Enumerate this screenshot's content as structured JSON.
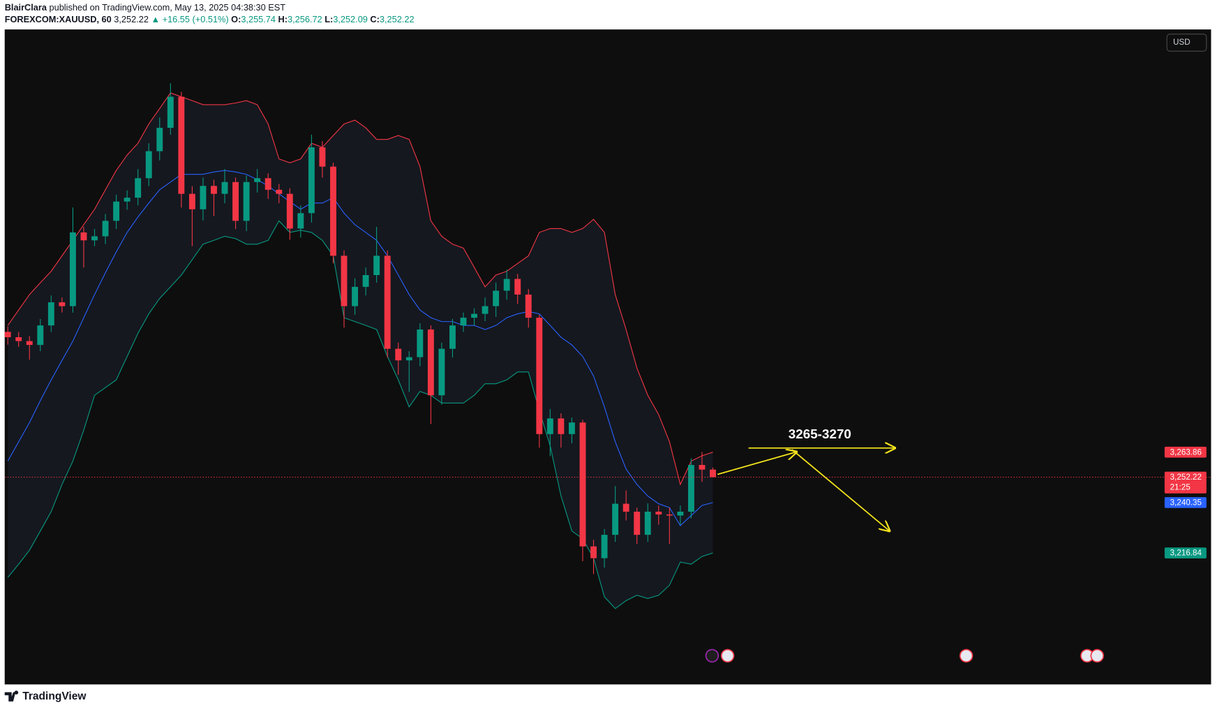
{
  "header": {
    "author": "BlairClara",
    "published": "published on TradingView.com, May 13, 2025 04:38:30 EST",
    "symbol": "FOREXCOM:XAUUSD, 60",
    "price": "3,252.22",
    "change": "▲ +16.55 (+0.51%)",
    "ohlc": [
      {
        "key": "O:",
        "value": "3,255.74"
      },
      {
        "key": "H:",
        "value": "3,256.72"
      },
      {
        "key": "L:",
        "value": "3,252.09"
      },
      {
        "key": "C:",
        "value": "3,252.22"
      }
    ]
  },
  "currency": "USD",
  "brand": "TradingView",
  "chart_data": {
    "type": "candlestick",
    "annotation": "3265-3270",
    "ylim": [
      3155.5,
      3461.1
    ],
    "up_color": "#089981",
    "down_color": "#f23645",
    "band_fill": "#15181f",
    "open": [
      3320.0,
      3317.5,
      3315.7,
      3313.9,
      3323.0,
      3333.8,
      3332.0,
      3366.4,
      3362.7,
      3364.6,
      3371.8,
      3380.8,
      3382.6,
      3391.7,
      3404.3,
      3415.2,
      3429.7,
      3384.4,
      3377.2,
      3388.1,
      3384.4,
      3389.9,
      3371.8,
      3389.9,
      3391.7,
      3386.3,
      3384.4,
      3368.2,
      3375.4,
      3406.1,
      3397.1,
      3355.5,
      3332.0,
      3341.0,
      3346.5,
      3355.5,
      3312.1,
      3306.7,
      3308.2,
      3321.1,
      3290.4,
      3312.1,
      3323.0,
      3326.6,
      3328.4,
      3332.0,
      3339.2,
      3344.7,
      3337.4,
      3326.6,
      3272.3,
      3279.6,
      3272.3,
      3277.7,
      3219.9,
      3214.4,
      3225.3,
      3239.8,
      3236.1,
      3225.3,
      3236.1,
      3234.8,
      3234.3,
      3236.1,
      3257.9,
      3255.74
    ],
    "high": [
      3322.5,
      3320.0,
      3318.0,
      3326.0,
      3337.0,
      3336.0,
      3378.0,
      3369.0,
      3368.0,
      3375.0,
      3384.0,
      3386.0,
      3396.0,
      3408.0,
      3420.0,
      3436.0,
      3432.0,
      3388.0,
      3392.0,
      3391.0,
      3396.0,
      3392.0,
      3393.0,
      3396.0,
      3394.0,
      3389.0,
      3387.0,
      3379.0,
      3412.0,
      3409.0,
      3399.0,
      3358.0,
      3345.0,
      3350.0,
      3369.0,
      3358.0,
      3315.0,
      3311.0,
      3324.0,
      3323.0,
      3315.0,
      3326.0,
      3329.0,
      3331.0,
      3336.0,
      3343.0,
      3349.0,
      3347.0,
      3340.0,
      3328.0,
      3284.0,
      3282.0,
      3280.0,
      3279.0,
      3223.0,
      3228.0,
      3248.0,
      3246.0,
      3238.0,
      3240.0,
      3239.0,
      3238.0,
      3239.0,
      3261.0,
      3264.0,
      3256.72
    ],
    "low": [
      3314.0,
      3313.0,
      3307.0,
      3311.0,
      3320.0,
      3329.0,
      3329.0,
      3350.0,
      3360.0,
      3361.0,
      3368.0,
      3377.0,
      3379.0,
      3388.0,
      3400.0,
      3412.0,
      3378.0,
      3360.0,
      3372.0,
      3374.0,
      3380.0,
      3368.0,
      3367.0,
      3385.0,
      3382.0,
      3380.0,
      3363.0,
      3364.0,
      3371.0,
      3392.0,
      3352.0,
      3322.0,
      3328.0,
      3337.0,
      3343.0,
      3308.0,
      3300.0,
      3292.0,
      3304.0,
      3277.0,
      3286.0,
      3308.0,
      3320.0,
      3323.0,
      3325.0,
      3327.0,
      3335.0,
      3333.0,
      3322.0,
      3266.0,
      3262.0,
      3266.0,
      3268.0,
      3213.0,
      3207.0,
      3210.0,
      3222.0,
      3232.0,
      3221.0,
      3222.0,
      3230.0,
      3221.0,
      3230.0,
      3233.0,
      3250.0,
      3252.09
    ],
    "close": [
      3317.5,
      3315.7,
      3313.9,
      3323.0,
      3333.8,
      3332.0,
      3366.4,
      3362.7,
      3364.6,
      3371.8,
      3380.8,
      3382.6,
      3391.7,
      3404.3,
      3415.2,
      3429.7,
      3384.4,
      3377.2,
      3388.1,
      3384.4,
      3389.9,
      3371.8,
      3389.9,
      3391.7,
      3386.3,
      3384.4,
      3368.2,
      3375.4,
      3406.1,
      3397.1,
      3355.5,
      3332.0,
      3341.0,
      3346.5,
      3355.5,
      3312.1,
      3306.7,
      3308.2,
      3321.1,
      3290.4,
      3312.1,
      3323.0,
      3326.6,
      3328.4,
      3332.0,
      3339.2,
      3344.7,
      3337.4,
      3326.6,
      3272.3,
      3279.6,
      3272.3,
      3277.7,
      3219.9,
      3214.4,
      3225.3,
      3239.8,
      3236.1,
      3225.3,
      3236.1,
      3234.8,
      3234.3,
      3236.1,
      3257.9,
      3255.74,
      3252.22
    ],
    "series": [
      {
        "color": "#f23645",
        "values": [
          3323.0,
          3330.2,
          3337.4,
          3342.9,
          3348.3,
          3355.5,
          3362.7,
          3370.0,
          3377.2,
          3386.3,
          3395.3,
          3402.5,
          3408.0,
          3417.0,
          3424.2,
          3431.5,
          3429.7,
          3427.9,
          3426.0,
          3426.0,
          3426.0,
          3426.8,
          3427.9,
          3426.0,
          3417.0,
          3400.7,
          3398.9,
          3400.7,
          3408.0,
          3406.1,
          3411.6,
          3417.0,
          3418.8,
          3415.2,
          3409.8,
          3409.8,
          3411.6,
          3409.8,
          3397.1,
          3371.8,
          3364.6,
          3360.9,
          3359.1,
          3350.1,
          3341.0,
          3346.5,
          3348.3,
          3351.9,
          3355.5,
          3366.4,
          3368.2,
          3368.2,
          3366.4,
          3368.2,
          3372.5,
          3366.4,
          3337.4,
          3321.1,
          3303.1,
          3290.4,
          3281.4,
          3268.7,
          3248.8,
          3259.7,
          3262.2,
          3263.86
        ]
      },
      {
        "color": "#2962ff",
        "values": [
          3259.7,
          3268.7,
          3277.7,
          3287.9,
          3297.6,
          3306.7,
          3315.7,
          3326.6,
          3337.4,
          3347.6,
          3357.3,
          3366.4,
          3373.6,
          3380.1,
          3386.3,
          3389.9,
          3393.5,
          3393.5,
          3393.5,
          3394.6,
          3395.3,
          3394.6,
          3393.5,
          3391.0,
          3388.1,
          3384.4,
          3380.8,
          3377.2,
          3380.1,
          3380.1,
          3382.6,
          3375.4,
          3370.0,
          3366.4,
          3362.7,
          3355.5,
          3346.5,
          3337.4,
          3330.2,
          3326.6,
          3324.8,
          3324.8,
          3323.0,
          3323.0,
          3321.1,
          3323.0,
          3326.6,
          3328.4,
          3329.5,
          3328.4,
          3323.0,
          3317.5,
          3313.9,
          3308.5,
          3299.4,
          3285.0,
          3268.7,
          3256.0,
          3248.8,
          3243.4,
          3239.8,
          3238.0,
          3229.6,
          3234.3,
          3239.0,
          3240.35
        ]
      },
      {
        "color": "#089981",
        "values": [
          3205.4,
          3211.6,
          3218.1,
          3227.1,
          3236.1,
          3248.8,
          3259.7,
          3274.1,
          3290.4,
          3294.0,
          3297.6,
          3308.5,
          3319.3,
          3328.4,
          3335.6,
          3341.0,
          3346.5,
          3353.7,
          3360.9,
          3362.7,
          3364.6,
          3363.5,
          3360.9,
          3360.9,
          3362.7,
          3371.8,
          3366.4,
          3367.4,
          3366.4,
          3362.7,
          3355.5,
          3326.6,
          3324.8,
          3323.0,
          3321.1,
          3308.5,
          3297.6,
          3285.0,
          3292.2,
          3290.4,
          3286.8,
          3286.8,
          3286.8,
          3290.4,
          3295.8,
          3295.8,
          3297.6,
          3301.3,
          3301.3,
          3283.2,
          3266.9,
          3243.4,
          3227.1,
          3223.5,
          3214.4,
          3196.4,
          3190.9,
          3194.6,
          3197.1,
          3195.6,
          3197.1,
          3201.8,
          3212.6,
          3211.6,
          3215.2,
          3216.84
        ]
      }
    ],
    "price_labels": [
      {
        "value": 3263.86,
        "label": "3,263.86",
        "color": "#f23645"
      },
      {
        "value": 3252.22,
        "label": "3,252.22",
        "color": "#f23645",
        "countdown": "21:25"
      },
      {
        "value": 3240.35,
        "label": "3,240.35",
        "color": "#2962ff"
      },
      {
        "value": 3216.84,
        "label": "3,216.84",
        "color": "#089981"
      }
    ]
  }
}
